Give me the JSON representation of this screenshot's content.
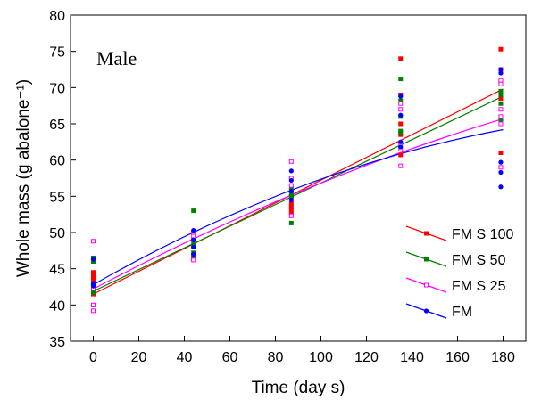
{
  "chart_data": {
    "type": "scatter",
    "annotation": "Male",
    "xlabel": "Time (day s)",
    "ylabel": "Whole mass (g abalone⁻¹)",
    "xlim": [
      -10,
      190
    ],
    "ylim": [
      35,
      80
    ],
    "xticks": [
      0,
      20,
      40,
      60,
      80,
      100,
      120,
      140,
      160,
      180
    ],
    "yticks": [
      35,
      40,
      45,
      50,
      55,
      60,
      65,
      70,
      75,
      80
    ],
    "legend_position": "bottom-right",
    "grid": false,
    "series": [
      {
        "name": "FM S 100",
        "color": "#ff0000",
        "marker": "filled-square",
        "fit": {
          "type": "linear",
          "start": [
            0,
            41.5
          ],
          "end": [
            180,
            69.8
          ]
        },
        "points": [
          [
            0,
            44.5
          ],
          [
            0,
            44.0
          ],
          [
            0,
            43.5
          ],
          [
            0,
            42.0
          ],
          [
            0,
            41.5
          ],
          [
            0,
            40.0
          ],
          [
            44,
            50.0
          ],
          [
            44,
            48.0
          ],
          [
            44,
            46.5
          ],
          [
            44,
            46.3
          ],
          [
            87,
            55.0
          ],
          [
            87,
            54.0
          ],
          [
            87,
            53.5
          ],
          [
            87,
            53.0
          ],
          [
            87,
            52.5
          ],
          [
            135,
            74.0
          ],
          [
            135,
            69.0
          ],
          [
            135,
            65.0
          ],
          [
            135,
            63.5
          ],
          [
            135,
            60.7
          ],
          [
            179,
            75.3
          ],
          [
            179,
            72.5
          ],
          [
            179,
            70.5
          ],
          [
            179,
            68.5
          ],
          [
            179,
            61.0
          ]
        ]
      },
      {
        "name": "FM S 50",
        "color": "#008000",
        "marker": "filled-square",
        "fit": {
          "type": "linear",
          "start": [
            0,
            41.9
          ],
          "end": [
            180,
            68.8
          ]
        },
        "points": [
          [
            0,
            46.5
          ],
          [
            0,
            46.0
          ],
          [
            0,
            42.5
          ],
          [
            0,
            41.7
          ],
          [
            44,
            53.0
          ],
          [
            44,
            48.5
          ],
          [
            44,
            47.2
          ],
          [
            44,
            46.8
          ],
          [
            87,
            56.0
          ],
          [
            87,
            55.5
          ],
          [
            87,
            55.0
          ],
          [
            87,
            51.3
          ],
          [
            135,
            71.2
          ],
          [
            135,
            68.2
          ],
          [
            135,
            66.0
          ],
          [
            135,
            64.0
          ],
          [
            135,
            63.8
          ],
          [
            179,
            70.8
          ],
          [
            179,
            69.5
          ],
          [
            179,
            69.0
          ],
          [
            179,
            67.8
          ],
          [
            179,
            65.5
          ]
        ]
      },
      {
        "name": "FM S 25",
        "color": "#ff00ff",
        "marker": "open-square",
        "fit": {
          "type": "curve",
          "start": [
            0,
            42.2
          ],
          "end": [
            180,
            65.7
          ]
        },
        "points": [
          [
            0,
            48.8
          ],
          [
            0,
            40.0
          ],
          [
            0,
            39.2
          ],
          [
            0,
            42.3
          ],
          [
            44,
            50.0
          ],
          [
            44,
            49.5
          ],
          [
            44,
            49.0
          ],
          [
            44,
            46.2
          ],
          [
            87,
            59.8
          ],
          [
            87,
            57.5
          ],
          [
            87,
            56.5
          ],
          [
            87,
            52.3
          ],
          [
            135,
            67.8
          ],
          [
            135,
            67.0
          ],
          [
            135,
            62.3
          ],
          [
            135,
            61.5
          ],
          [
            135,
            59.2
          ],
          [
            179,
            71.0
          ],
          [
            179,
            70.5
          ],
          [
            179,
            67.0
          ],
          [
            179,
            66.0
          ],
          [
            179,
            65.0
          ],
          [
            179,
            59.0
          ]
        ]
      },
      {
        "name": "FM",
        "color": "#0000ff",
        "marker": "filled-circle",
        "fit": {
          "type": "curve",
          "start": [
            0,
            42.8
          ],
          "end": [
            180,
            64.2
          ]
        },
        "points": [
          [
            0,
            46.3
          ],
          [
            0,
            43.0
          ],
          [
            0,
            42.8
          ],
          [
            0,
            42.6
          ],
          [
            44,
            50.3
          ],
          [
            44,
            49.0
          ],
          [
            44,
            48.0
          ],
          [
            44,
            47.0
          ],
          [
            87,
            58.5
          ],
          [
            87,
            57.2
          ],
          [
            87,
            55.7
          ],
          [
            87,
            54.5
          ],
          [
            135,
            68.8
          ],
          [
            135,
            66.2
          ],
          [
            135,
            62.5
          ],
          [
            135,
            61.8
          ],
          [
            179,
            72.5
          ],
          [
            179,
            72.0
          ],
          [
            179,
            59.7
          ],
          [
            179,
            58.3
          ],
          [
            179,
            56.3
          ]
        ]
      }
    ]
  }
}
